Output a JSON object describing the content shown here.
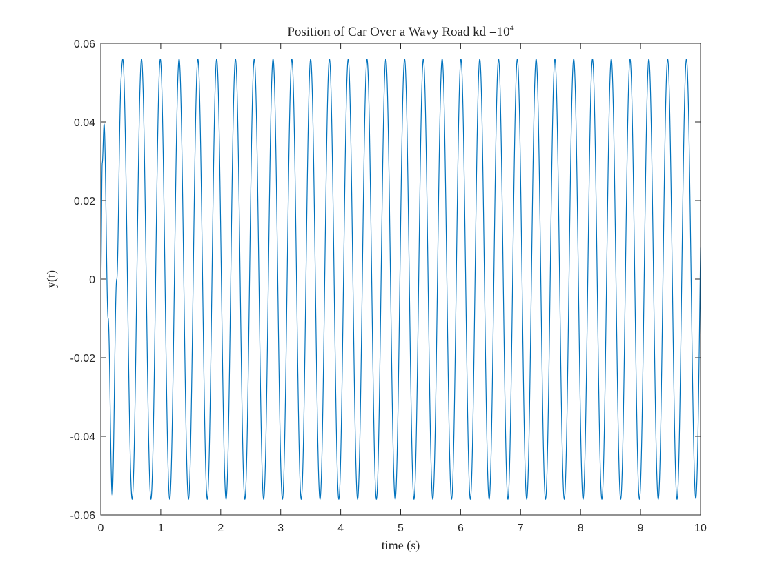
{
  "chart_data": {
    "type": "line",
    "title": "Position of Car Over a Wavy Road kd =",
    "title_sup_base": "10",
    "title_sup_exp": "4",
    "xlabel": "time (s)",
    "ylabel": "y(t)",
    "xlim": [
      0,
      10
    ],
    "ylim": [
      -0.06,
      0.06
    ],
    "xticks": [
      0,
      1,
      2,
      3,
      4,
      5,
      6,
      7,
      8,
      9,
      10
    ],
    "xtick_labels": [
      "0",
      "1",
      "2",
      "3",
      "4",
      "5",
      "6",
      "7",
      "8",
      "9",
      "10"
    ],
    "yticks": [
      -0.06,
      -0.04,
      -0.02,
      0,
      0.02,
      0.04,
      0.06
    ],
    "ytick_labels": [
      "-0.06",
      "-0.04",
      "-0.02",
      "0",
      "0.02",
      "0.04",
      "0.06"
    ],
    "grid": false,
    "series": [
      {
        "name": "y(t)",
        "color": "#0072BD",
        "steady_amplitude": 0.056,
        "period": 0.3133,
        "phase_zero_crossing_at_end": 10.0,
        "initial_peak": {
          "t": 0.055,
          "y": 0.0395
        },
        "initial_trough": {
          "t": 0.19,
          "y": -0.055
        },
        "first_full_peak": {
          "t": 0.34,
          "y": 0.056
        },
        "end_value": {
          "t": 10.0,
          "y": 0.008
        },
        "peaks_t": [
          0.34,
          0.655,
          0.965,
          1.28,
          1.59,
          1.905,
          2.215,
          2.53,
          2.84,
          3.155,
          3.465,
          3.78,
          4.09,
          4.405,
          4.715,
          5.03,
          5.34,
          5.655,
          5.965,
          6.28,
          6.59,
          6.905,
          7.215,
          7.53,
          7.84,
          8.155,
          8.465,
          8.78,
          9.09,
          9.405,
          9.715
        ],
        "troughs_t": [
          0.19,
          0.5,
          0.81,
          1.125,
          1.435,
          1.75,
          2.06,
          2.375,
          2.685,
          3.0,
          3.31,
          3.625,
          3.935,
          4.25,
          4.56,
          4.875,
          5.185,
          5.5,
          5.81,
          6.125,
          6.435,
          6.75,
          7.06,
          7.375,
          7.685,
          8.0,
          8.31,
          8.625,
          8.935,
          9.25,
          9.56,
          9.875
        ]
      }
    ]
  }
}
